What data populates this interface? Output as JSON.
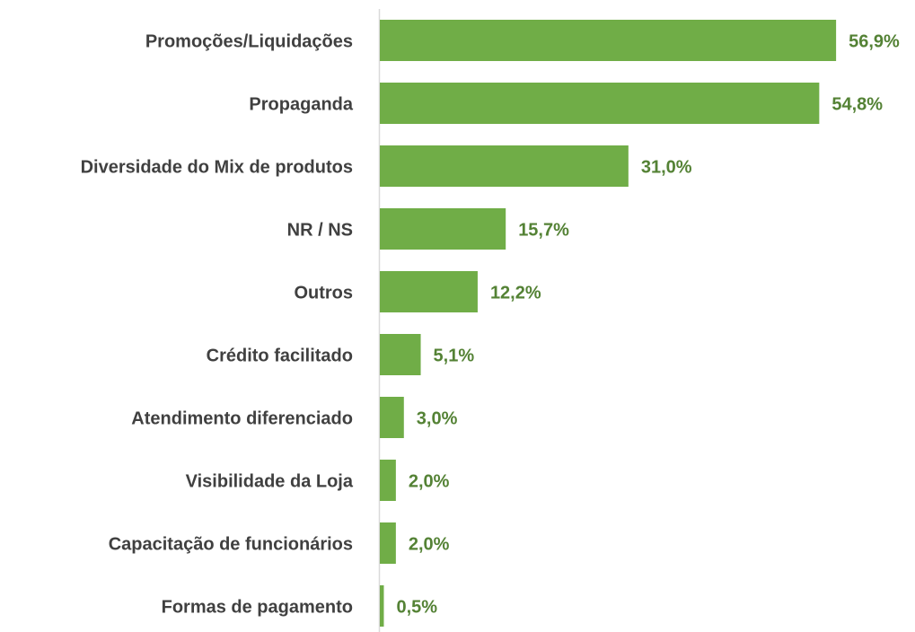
{
  "chart_data": {
    "type": "bar",
    "orientation": "horizontal",
    "categories": [
      "Promoções/Liquidações",
      "Propaganda",
      "Diversidade do Mix de produtos",
      "NR / NS",
      "Outros",
      "Crédito facilitado",
      "Atendimento diferenciado",
      "Visibilidade da Loja",
      "Capacitação de funcionários",
      "Formas de pagamento"
    ],
    "values": [
      56.9,
      54.8,
      31.0,
      15.7,
      12.2,
      5.1,
      3.0,
      2.0,
      2.0,
      0.5
    ],
    "value_labels": [
      "56,9%",
      "54,8%",
      "31,0%",
      "15,7%",
      "12,2%",
      "5,1%",
      "3,0%",
      "2,0%",
      "2,0%",
      "0,5%"
    ],
    "color": "#70ad47",
    "label_color": "#548235"
  }
}
